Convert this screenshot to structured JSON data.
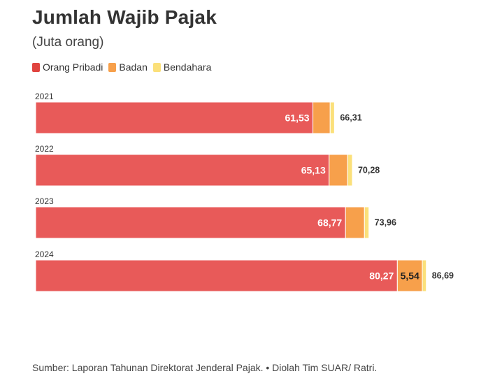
{
  "chart_data": {
    "type": "bar",
    "orientation": "horizontal",
    "stacked": true,
    "title": "Jumlah Wajib Pajak",
    "subtitle": "(Juta orang)",
    "categories": [
      "2021",
      "2022",
      "2023",
      "2024"
    ],
    "series": [
      {
        "name": "Orang Pribadi",
        "color": "#e85a59",
        "values": [
          61.53,
          65.13,
          68.77,
          80.27
        ],
        "labels": [
          "61,53",
          "65,13",
          "68,77",
          "80,27"
        ]
      },
      {
        "name": "Badan",
        "color": "#f7a04b",
        "values": [
          3.83,
          4.1,
          4.2,
          5.54
        ],
        "labels": [
          "",
          "",
          "",
          "5,54"
        ]
      },
      {
        "name": "Bendahara",
        "color": "#fbe07a",
        "values": [
          0.95,
          1.05,
          0.99,
          0.88
        ],
        "labels": [
          "",
          "",
          "",
          ""
        ]
      }
    ],
    "totals": [
      66.31,
      70.28,
      73.96,
      86.69
    ],
    "total_labels": [
      "66,31",
      "70,28",
      "73,96",
      "86,69"
    ],
    "xlim": [
      0,
      100
    ],
    "legend_position": "top-left",
    "grid": false
  },
  "source": "Sumber: Laporan Tahunan Direktorat Jenderal Pajak. • Diolah Tim SUAR/ Ratri."
}
